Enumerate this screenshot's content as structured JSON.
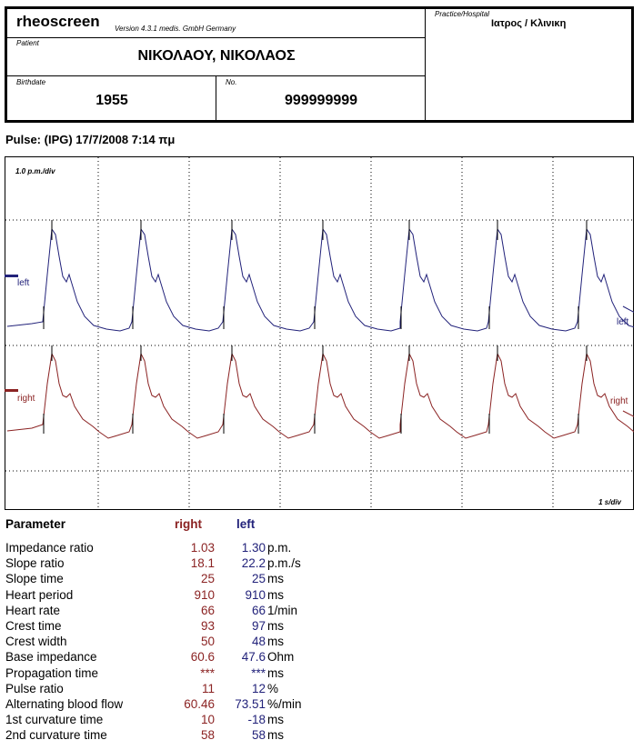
{
  "header": {
    "app_name": "rheoscreen",
    "version": "Version 4.3.1  medis. GmbH Germany",
    "patient_label": "Patient",
    "patient_name": "ΝΙΚΟΛΑΟΥ, ΝΙΚΟΛΑΟΣ",
    "birthdate_label": "Birthdate",
    "birthdate": "1955",
    "no_label": "No.",
    "number": "999999999",
    "practice_label": "Practice/Hospital",
    "practice": "Ιατρος / Κλινικη"
  },
  "pulse_title": "Pulse:  (IPG) 17/7/2008 7:14 πμ",
  "chart_data": {
    "type": "line",
    "scale_label": "1.0 p.m./div",
    "time_label": "1 s/div",
    "series": [
      {
        "name": "left",
        "color": "#22227a",
        "beats": 7
      },
      {
        "name": "right",
        "color": "#8b2323",
        "beats": 7
      }
    ]
  },
  "params": {
    "head": {
      "name": "Parameter",
      "right": "right",
      "left": "left"
    },
    "rows": [
      {
        "name": "Impedance ratio",
        "right": "1.03",
        "left": "1.30",
        "unit": "p.m."
      },
      {
        "name": "Slope ratio",
        "right": "18.1",
        "left": "22.2",
        "unit": "p.m./s"
      },
      {
        "name": "Slope time",
        "right": "25",
        "left": "25",
        "unit": "ms"
      },
      {
        "name": "Heart period",
        "right": "910",
        "left": "910",
        "unit": "ms"
      },
      {
        "name": "Heart rate",
        "right": "66",
        "left": "66",
        "unit": "1/min"
      },
      {
        "name": "Crest time",
        "right": "93",
        "left": "97",
        "unit": "ms"
      },
      {
        "name": "Crest width",
        "right": "50",
        "left": "48",
        "unit": "ms"
      },
      {
        "name": "Base impedance",
        "right": "60.6",
        "left": "47.6",
        "unit": "Ohm"
      },
      {
        "name": "Propagation time",
        "right": "***",
        "left": "***",
        "unit": "ms"
      },
      {
        "name": "Pulse ratio",
        "right": "11",
        "left": "12",
        "unit": "%"
      },
      {
        "name": "Alternating blood flow",
        "right": "60.46",
        "left": "73.51",
        "unit": "%/min"
      },
      {
        "name": "1st curvature time",
        "right": "10",
        "left": "-18",
        "unit": "ms"
      },
      {
        "name": "2nd curvature time",
        "right": "58",
        "left": "58",
        "unit": "ms"
      }
    ]
  }
}
